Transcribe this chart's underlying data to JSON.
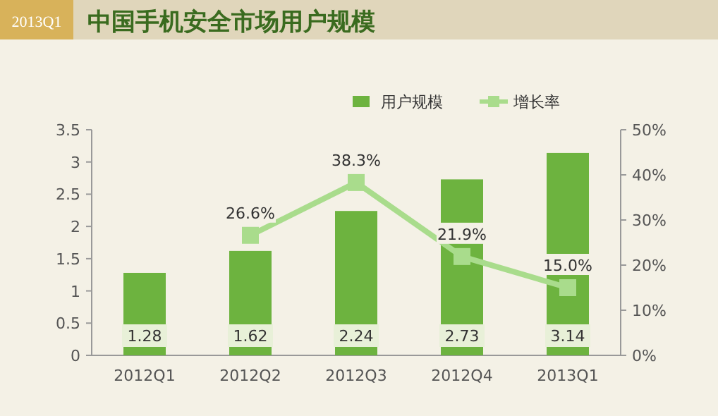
{
  "chart_data": {
    "type": "bar",
    "title": "中国手机安全市场用户规模",
    "annotations": [
      "2013Q1"
    ],
    "categories": [
      "2012Q1",
      "2012Q2",
      "2012Q3",
      "2012Q4",
      "2013Q1"
    ],
    "series": [
      {
        "name": "用户规模",
        "color": "#6db33f",
        "values": [
          1.28,
          1.62,
          2.24,
          2.73,
          3.14
        ],
        "value_labels": [
          "1.28",
          "1.62",
          "2.24",
          "2.73",
          "3.14"
        ]
      },
      {
        "name": "增长率",
        "type": "line",
        "axis": "y2",
        "color": "#a9dc8c",
        "marker": "square",
        "values": [
          null,
          26.6,
          38.3,
          21.9,
          15.0
        ],
        "value_labels": [
          null,
          "26.6%",
          "38.3%",
          "21.9%",
          "15.0%"
        ]
      }
    ],
    "ylim": [
      0,
      3.5
    ],
    "yticks": [
      0,
      0.5,
      1,
      1.5,
      2,
      2.5,
      3,
      3.5
    ],
    "y2lim": [
      0,
      50
    ],
    "y2ticks": [
      {
        "value": 0,
        "label": "0%"
      },
      {
        "value": 10,
        "label": "10%"
      },
      {
        "value": 20,
        "label": "20%"
      },
      {
        "value": 30,
        "label": "30%"
      },
      {
        "value": 40,
        "label": "40%"
      },
      {
        "value": 50,
        "label": "50%"
      }
    ],
    "legend": "top right"
  }
}
